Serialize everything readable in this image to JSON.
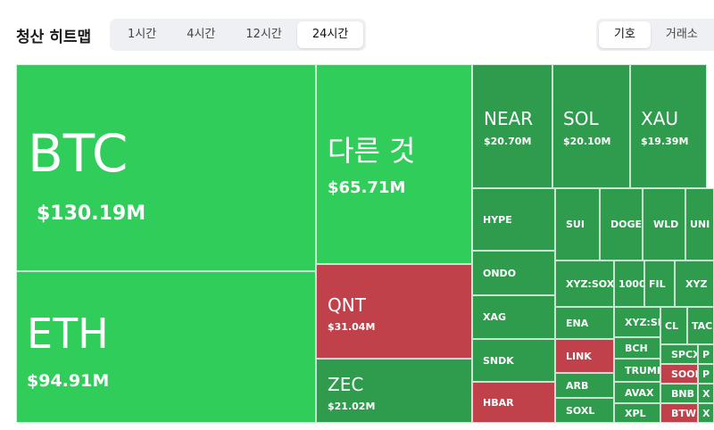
{
  "header": {
    "title": "청산 히트맵",
    "time_tabs": [
      {
        "label": "1시간",
        "active": false
      },
      {
        "label": "4시간",
        "active": false
      },
      {
        "label": "12시간",
        "active": false
      },
      {
        "label": "24시간",
        "active": true
      }
    ],
    "group_tabs": [
      {
        "label": "기호",
        "active": true
      },
      {
        "label": "거래소",
        "active": false
      }
    ]
  },
  "tiles": [
    {
      "label": "BTC",
      "value": "$130.19M",
      "color": "#30cd5a"
    },
    {
      "label": "ETH",
      "value": "$94.91M",
      "color": "#30cd5a"
    },
    {
      "label": "다른 것",
      "value": "$65.71M",
      "color": "#30cd5a"
    },
    {
      "label": "QNT",
      "value": "$31.04M",
      "color": "#c1414a"
    },
    {
      "label": "ZEC",
      "value": "$21.02M",
      "color": "#2f9b4d"
    },
    {
      "label": "NEAR",
      "value": "$20.70M",
      "color": "#2f9b4d"
    },
    {
      "label": "SOL",
      "value": "$20.10M",
      "color": "#2f9b4d"
    },
    {
      "label": "XAU",
      "value": "$19.39M",
      "color": "#2f9b4d"
    },
    {
      "label": "HYPE",
      "color": "#2f9b4d"
    },
    {
      "label": "ONDO",
      "color": "#2f9b4d"
    },
    {
      "label": "XAG",
      "color": "#2f9b4d"
    },
    {
      "label": "SNDK",
      "color": "#2f9b4d"
    },
    {
      "label": "HBAR",
      "color": "#c1414a"
    },
    {
      "label": "SUI",
      "color": "#2f9b4d"
    },
    {
      "label": "DOGE",
      "color": "#2f9b4d"
    },
    {
      "label": "WLD",
      "color": "#2f9b4d"
    },
    {
      "label": "UNI",
      "color": "#2f9b4d"
    },
    {
      "label": "XYZ:SOXL",
      "color": "#2f9b4d"
    },
    {
      "label": "1000",
      "color": "#2f9b4d"
    },
    {
      "label": "FIL",
      "color": "#2f9b4d"
    },
    {
      "label": "XYZ",
      "color": "#2f9b4d"
    },
    {
      "label": "ENA",
      "color": "#2f9b4d"
    },
    {
      "label": "XYZ:SIL",
      "color": "#2f9b4d"
    },
    {
      "label": "CL",
      "color": "#2f9b4d"
    },
    {
      "label": "TAC",
      "color": "#2f9b4d"
    },
    {
      "label": "LINK",
      "color": "#c1414a"
    },
    {
      "label": "BCH",
      "color": "#2f9b4d"
    },
    {
      "label": "SPCX",
      "color": "#2f9b4d"
    },
    {
      "label": "P",
      "color": "#2f9b4d"
    },
    {
      "label": "ARB",
      "color": "#2f9b4d"
    },
    {
      "label": "TRUMP",
      "color": "#2f9b4d"
    },
    {
      "label": "SOON",
      "color": "#c1414a"
    },
    {
      "label": "P",
      "color": "#2f9b4d"
    },
    {
      "label": "SOXL",
      "color": "#2f9b4d"
    },
    {
      "label": "AVAX",
      "color": "#2f9b4d"
    },
    {
      "label": "BNB",
      "color": "#2f9b4d"
    },
    {
      "label": "X",
      "color": "#2f9b4d"
    },
    {
      "label": "XPL",
      "color": "#2f9b4d"
    },
    {
      "label": "BTW",
      "color": "#c1414a"
    },
    {
      "label": "X",
      "color": "#2f9b4d"
    }
  ]
}
